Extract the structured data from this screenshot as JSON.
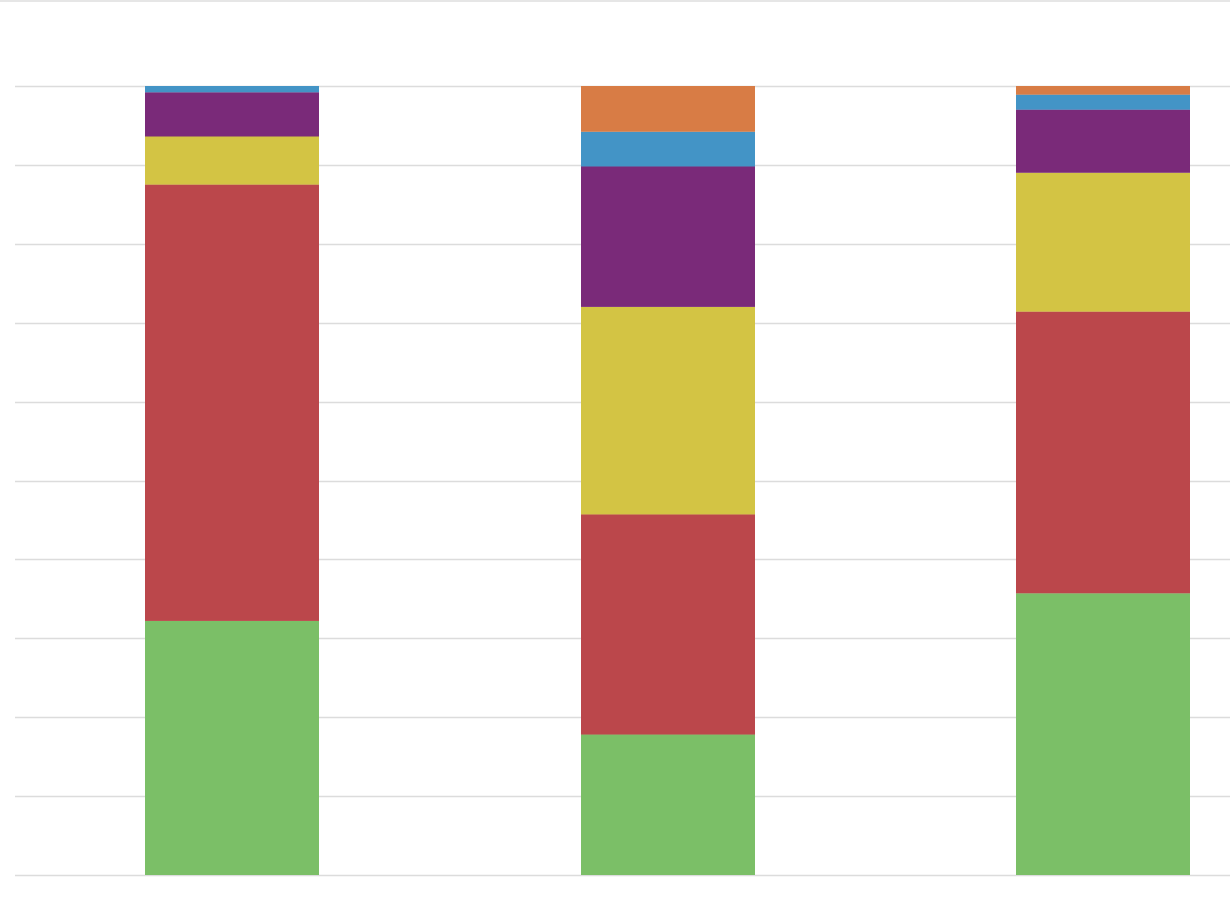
{
  "chart_data": {
    "type": "bar",
    "stacked": true,
    "normalized": true,
    "categories": [
      "",
      "",
      ""
    ],
    "series": [
      {
        "color": "#7bbf67",
        "values": [
          32.2,
          17.8,
          35.7
        ]
      },
      {
        "color": "#bb474b",
        "values": [
          55.3,
          27.9,
          35.7
        ]
      },
      {
        "color": "#d3c444",
        "values": [
          6.1,
          26.3,
          17.6
        ]
      },
      {
        "color": "#7a2a79",
        "values": [
          5.6,
          17.8,
          8.0
        ]
      },
      {
        "color": "#4394c6",
        "values": [
          0.8,
          4.4,
          1.9
        ]
      },
      {
        "color": "#d87c45",
        "values": [
          0.0,
          5.8,
          1.1
        ]
      }
    ],
    "ylim": [
      0,
      100
    ],
    "grid": true,
    "legend": "none"
  }
}
